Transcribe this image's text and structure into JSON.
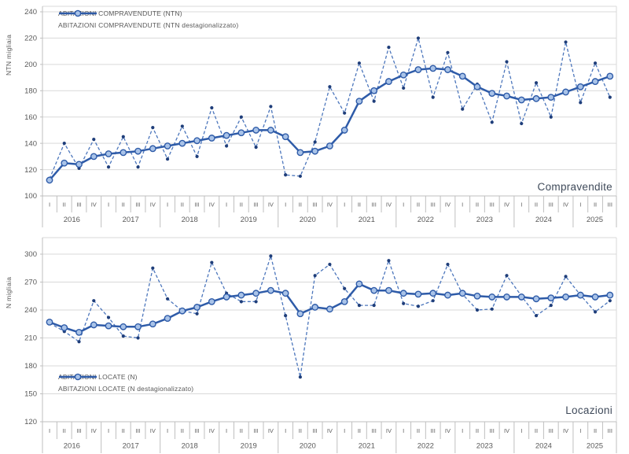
{
  "colors": {
    "raw_line": "#4C76BC",
    "raw_marker": "#1F3E7A",
    "seasonal_line": "#2E5BA8",
    "seasonal_marker_fill": "#A9C3E8",
    "grid": "#D9D9D9",
    "axis": "#BFBFBF",
    "tick_text": "#595959",
    "corner_text": "#3F4A5A"
  },
  "x_axis": {
    "years": [
      {
        "label": "2016",
        "quarters": [
          "I",
          "II",
          "III",
          "IV"
        ]
      },
      {
        "label": "2017",
        "quarters": [
          "I",
          "II",
          "III",
          "IV"
        ]
      },
      {
        "label": "2018",
        "quarters": [
          "I",
          "II",
          "III",
          "IV"
        ]
      },
      {
        "label": "2019",
        "quarters": [
          "I",
          "II",
          "III",
          "IV"
        ]
      },
      {
        "label": "2020",
        "quarters": [
          "I",
          "II",
          "III",
          "IV"
        ]
      },
      {
        "label": "2021",
        "quarters": [
          "I",
          "II",
          "III",
          "IV"
        ]
      },
      {
        "label": "2022",
        "quarters": [
          "I",
          "II",
          "III",
          "IV"
        ]
      },
      {
        "label": "2023",
        "quarters": [
          "I",
          "II",
          "III",
          "IV"
        ]
      },
      {
        "label": "2024",
        "quarters": [
          "I",
          "II",
          "III",
          "IV"
        ]
      },
      {
        "label": "2025",
        "quarters": [
          "I",
          "II",
          "III"
        ]
      }
    ]
  },
  "chart_data": [
    {
      "type": "line",
      "title": "Compravendite",
      "ylabel": "NTN migliaia",
      "ylim": [
        100,
        240
      ],
      "yticks": [
        100,
        120,
        140,
        160,
        180,
        200,
        220,
        240
      ],
      "legend_position": "top-left-inside",
      "grid": true,
      "x_categories": "quarters 2016-I .. 2025-III",
      "series": [
        {
          "name": "ABITAZIONI COMPRAVENDUTE (NTN)",
          "style": "dashed",
          "values": [
            113,
            140,
            121,
            143,
            122,
            145,
            122,
            152,
            128,
            153,
            130,
            167,
            138,
            160,
            137,
            168,
            116,
            115,
            141,
            183,
            163,
            201,
            172,
            213,
            182,
            220,
            175,
            209,
            166,
            185,
            156,
            202,
            155,
            186,
            160,
            217,
            171,
            201,
            175
          ]
        },
        {
          "name": "ABITAZIONI COMPRAVENDUTE (NTN destagionalizzato)",
          "style": "solid",
          "values": [
            112,
            125,
            124,
            130,
            132,
            133,
            134,
            136,
            138,
            140,
            142,
            144,
            146,
            148,
            150,
            150,
            145,
            133,
            134,
            138,
            150,
            172,
            180,
            187,
            192,
            196,
            197,
            196,
            191,
            183,
            178,
            176,
            173,
            174,
            175,
            179,
            183,
            187,
            191
          ]
        }
      ]
    },
    {
      "type": "line",
      "title": "Locazioni",
      "ylabel": "N migliaia",
      "ylim": [
        120,
        300
      ],
      "yticks": [
        120,
        150,
        180,
        210,
        240,
        270,
        300
      ],
      "legend_position": "bottom-left-inside",
      "grid": true,
      "x_categories": "quarters 2016-I .. 2025-III",
      "series": [
        {
          "name": "ABITAZIONI LOCATE (N)",
          "style": "dashed",
          "values": [
            226,
            217,
            206,
            250,
            232,
            212,
            210,
            285,
            252,
            239,
            236,
            291,
            258,
            249,
            249,
            298,
            234,
            168,
            277,
            289,
            263,
            245,
            245,
            293,
            247,
            244,
            250,
            289,
            257,
            240,
            241,
            277,
            255,
            234,
            245,
            276,
            256,
            238,
            250
          ]
        },
        {
          "name": "ABITAZIONI LOCATE (N destagionalizzato)",
          "style": "solid",
          "values": [
            227,
            221,
            216,
            224,
            223,
            222,
            222,
            225,
            231,
            239,
            243,
            249,
            254,
            256,
            258,
            261,
            258,
            236,
            243,
            241,
            249,
            268,
            261,
            261,
            258,
            257,
            258,
            256,
            258,
            255,
            254,
            254,
            254,
            252,
            253,
            254,
            256,
            254,
            256
          ]
        }
      ]
    }
  ]
}
